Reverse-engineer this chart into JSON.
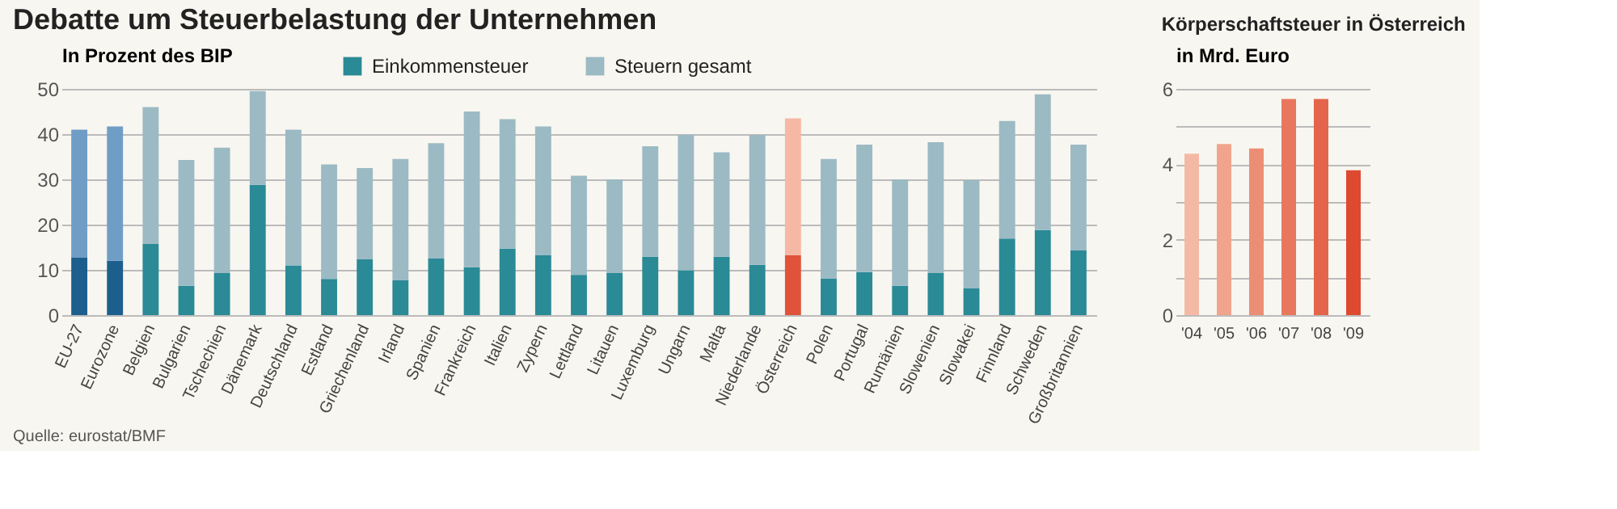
{
  "chart_data": [
    {
      "type": "bar",
      "title": "Debatte um Steuerbelastung  der Unternehmen",
      "ylabel": "In Prozent des BIP",
      "stacked": true,
      "legend": "top",
      "grid": "y",
      "categories": [
        "EU-27",
        "Eurozone",
        "Belgien",
        "Bulgarien",
        "Tschechien",
        "Dänemark",
        "Deutschland",
        "Estland",
        "Griechenland",
        "Irland",
        "Spanien",
        "Frankreich",
        "Italien",
        "Zypern",
        "Lettland",
        "Litauen",
        "Luxemburg",
        "Ungarn",
        "Malta",
        "Niederlande",
        "Österreich",
        "Polen",
        "Portugal",
        "Rumänien",
        "Slowenien",
        "Slowakei",
        "Finnland",
        "Schweden",
        "Großbritannien"
      ],
      "series": [
        {
          "name": "Einkommensteuer",
          "color": "#2a8a96",
          "colors": [
            "#1d5f8c",
            "#1d5f8c",
            "#2a8a96",
            "#2a8a96",
            "#2a8a96",
            "#2a8a96",
            "#2a8a96",
            "#2a8a96",
            "#2a8a96",
            "#2a8a96",
            "#2a8a96",
            "#2a8a96",
            "#2a8a96",
            "#2a8a96",
            "#2a8a96",
            "#2a8a96",
            "#2a8a96",
            "#2a8a96",
            "#2a8a96",
            "#2a8a96",
            "#e0533a",
            "#2a8a96",
            "#2a8a96",
            "#2a8a96",
            "#2a8a96",
            "#2a8a96",
            "#2a8a96",
            "#2a8a96",
            "#2a8a96"
          ],
          "values": [
            12.7,
            12,
            15.7,
            6.5,
            9.3,
            28.8,
            11,
            8,
            12.3,
            7.7,
            12.5,
            10.6,
            14.7,
            13.2,
            8.9,
            9.3,
            12.9,
            9.9,
            12.9,
            11.1,
            13.2,
            8.1,
            9.5,
            6.5,
            9.3,
            5.9,
            16.9,
            18.8,
            14.3
          ]
        },
        {
          "name": "Steuern gesamt",
          "color": "#9bbac4",
          "colors": [
            "#6f9dc6",
            "#6f9dc6",
            "#9bbac4",
            "#9bbac4",
            "#9bbac4",
            "#9bbac4",
            "#9bbac4",
            "#9bbac4",
            "#9bbac4",
            "#9bbac4",
            "#9bbac4",
            "#9bbac4",
            "#9bbac4",
            "#9bbac4",
            "#9bbac4",
            "#9bbac4",
            "#9bbac4",
            "#9bbac4",
            "#9bbac4",
            "#9bbac4",
            "#f5b8a5",
            "#9bbac4",
            "#9bbac4",
            "#9bbac4",
            "#9bbac4",
            "#9bbac4",
            "#9bbac4",
            "#9bbac4",
            "#9bbac4"
          ],
          "values": [
            28.3,
            29.7,
            30.3,
            27.8,
            27.7,
            20.7,
            30,
            25.3,
            20.2,
            26.8,
            25.5,
            34.4,
            28.6,
            28.5,
            21.9,
            20.7,
            24.4,
            29.9,
            23.1,
            28.7,
            30.3,
            26.4,
            28.2,
            23.5,
            28.9,
            23.9,
            26,
            30,
            23.4
          ]
        }
      ],
      "ylim": [
        0,
        50
      ],
      "yticks": [
        0,
        10,
        20,
        30,
        40,
        50
      ],
      "annotations": [
        "Quelle: eurostat/BMF"
      ]
    },
    {
      "type": "bar",
      "title": "Körperschaftsteuer in Österreich",
      "ylabel": "in Mrd. Euro",
      "grid": "y",
      "categories": [
        "'04",
        "'05",
        "'06",
        "'07",
        "'08",
        "'09"
      ],
      "values": [
        4.28,
        4.54,
        4.42,
        5.73,
        5.73,
        3.84
      ],
      "colors": [
        "#f4b9a5",
        "#f1a48c",
        "#ec8e75",
        "#e8775e",
        "#e4654b",
        "#dd4a30"
      ],
      "ylim": [
        0,
        6
      ],
      "yticks": [
        0,
        {
          "value": 1,
          "label": null
        },
        2,
        {
          "value": 3,
          "label": null
        },
        4,
        {
          "value": 5,
          "label": null
        },
        6
      ]
    }
  ]
}
